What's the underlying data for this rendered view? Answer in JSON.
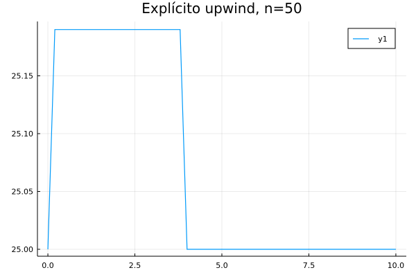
{
  "chart_data": {
    "type": "line",
    "title": "Explícito upwind, n=50",
    "xlabel": "",
    "ylabel": "",
    "xlim": [
      -0.3,
      10.3
    ],
    "ylim": [
      24.994,
      25.197
    ],
    "x_ticks": [
      0.0,
      2.5,
      5.0,
      7.5,
      10.0
    ],
    "x_tick_labels": [
      "0.0",
      "2.5",
      "5.0",
      "7.5",
      "10.0"
    ],
    "y_ticks": [
      25.0,
      25.05,
      25.1,
      25.15
    ],
    "y_tick_labels": [
      "25.00",
      "25.05",
      "25.10",
      "25.15"
    ],
    "grid": true,
    "legend_position": "top-right",
    "series": [
      {
        "name": "y1",
        "color": "#009AFA",
        "x": [
          0.0,
          0.2,
          3.8,
          4.0,
          10.0
        ],
        "y": [
          25.0,
          25.19,
          25.19,
          25.0,
          25.0
        ]
      }
    ]
  }
}
